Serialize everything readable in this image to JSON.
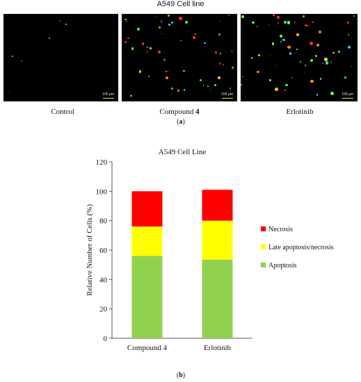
{
  "panel_a": {
    "title": "A549 Cell line",
    "scale_bar_text": "100 μm",
    "images": [
      {
        "label": "Control"
      },
      {
        "label_prefix": "Compound ",
        "label_bold": "4"
      },
      {
        "label": "Erlotinib"
      }
    ],
    "sub_label": {
      "open": "(",
      "letter": "a",
      "close": ")"
    }
  },
  "panel_b": {
    "sub_label": {
      "open": "(",
      "letter": "b",
      "close": ")"
    }
  },
  "chart_data": {
    "type": "bar",
    "stacked": true,
    "title": "A549 Cell Line",
    "ylabel": "Relative Number of Cells (%)",
    "xlabel": "",
    "categories": [
      "Compound 4",
      "Erlotinib"
    ],
    "ylim": [
      0,
      120
    ],
    "yticks": [
      0,
      20,
      40,
      60,
      80,
      100,
      120
    ],
    "grid": false,
    "legend_position": "right",
    "series": [
      {
        "name": "Apoptosis",
        "values": [
          56,
          53.5
        ],
        "color": "#92d050"
      },
      {
        "name": "Late apoptosis/necrosis",
        "values": [
          20,
          26.5
        ],
        "color": "#ffff00"
      },
      {
        "name": "Necrosis",
        "values": [
          24,
          21
        ],
        "color": "#ff0000"
      }
    ],
    "legend_order": [
      "Necrosis",
      "Late apoptosis/necrosis",
      "Apoptosis"
    ]
  }
}
